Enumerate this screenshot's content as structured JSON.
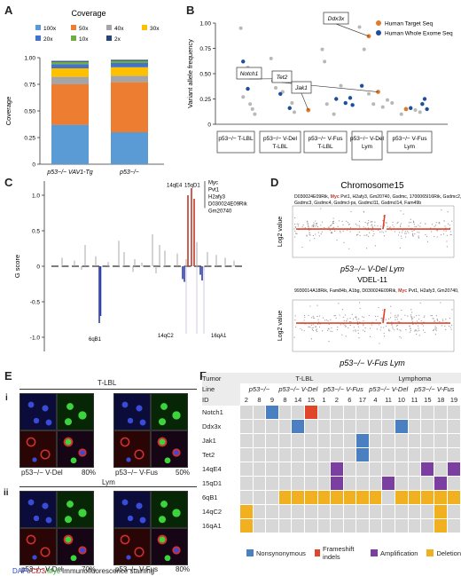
{
  "panels": {
    "A": "A",
    "B": "B",
    "C": "C",
    "D": "D",
    "E": "E",
    "F": "F"
  },
  "panelA": {
    "chart_data": {
      "type": "bar",
      "title": "Coverage",
      "ylabel": "Coverage",
      "ylim": [
        0,
        1
      ],
      "yticks": [
        "0",
        "0.25",
        "0.50",
        "0.75",
        "1.00"
      ],
      "categories": [
        "p53−/− VAV1-Tg",
        "p53−/−"
      ],
      "legend": [
        "100x",
        "50x",
        "40x",
        "30x",
        "20x",
        "10x",
        "2x"
      ],
      "colors": [
        "#5b9bd5",
        "#ed7d31",
        "#a5a5a5",
        "#ffc000",
        "#4472c4",
        "#70ad47",
        "#264478"
      ],
      "stacks": [
        {
          "values": [
            0.37,
            0.38,
            0.07,
            0.08,
            0.04,
            0.02,
            0.01
          ]
        },
        {
          "values": [
            0.3,
            0.47,
            0.06,
            0.08,
            0.04,
            0.02,
            0.01
          ]
        }
      ]
    }
  },
  "panelB": {
    "chart_data": {
      "type": "scatter",
      "ylabel": "Variant allele frequency",
      "ylim": [
        0,
        1
      ],
      "yticks": [
        "0",
        "0.25",
        "0.50",
        "0.75",
        "1.00"
      ],
      "legend": [
        {
          "name": "Human Target Seq",
          "color": "#e07b29"
        },
        {
          "name": "Human Whole Exome Seq",
          "color": "#1f4e9a"
        }
      ],
      "groups": [
        "p53−/− T-LBL",
        "p53−/− V-Del T-LBL",
        "p53−/− V-Fus T-LBL",
        "p53−/− V-Del Lym",
        "p53−/− V-Fus Lym"
      ],
      "callouts": [
        "Ddx3x",
        "Notch1",
        "Tet2",
        "Jak1"
      ],
      "orange_points": [
        [
          3.2,
          0.87
        ],
        [
          1.4,
          0.45
        ],
        [
          3.4,
          0.32
        ],
        [
          1.9,
          0.14
        ],
        [
          4.0,
          0.15
        ]
      ],
      "blue_points": [
        [
          0.5,
          0.62
        ],
        [
          0.55,
          0.47
        ],
        [
          0.6,
          0.35
        ],
        [
          1.15,
          0.43
        ],
        [
          1.3,
          0.3
        ],
        [
          1.5,
          0.16
        ],
        [
          2.5,
          0.25
        ],
        [
          2.7,
          0.21
        ],
        [
          2.8,
          0.26
        ],
        [
          2.85,
          0.19
        ],
        [
          3.05,
          0.38
        ],
        [
          4.1,
          0.16
        ],
        [
          4.35,
          0.2
        ],
        [
          4.4,
          0.25
        ],
        [
          4.45,
          0.15
        ]
      ],
      "gray_points": [
        [
          0.45,
          0.95
        ],
        [
          0.6,
          0.56
        ],
        [
          0.5,
          0.27
        ],
        [
          0.65,
          0.2
        ],
        [
          0.7,
          0.15
        ],
        [
          0.75,
          0.1
        ],
        [
          1.1,
          0.65
        ],
        [
          1.2,
          0.36
        ],
        [
          1.35,
          0.32
        ],
        [
          1.55,
          0.21
        ],
        [
          1.6,
          0.12
        ],
        [
          2.2,
          0.74
        ],
        [
          2.25,
          0.62
        ],
        [
          2.3,
          0.2
        ],
        [
          2.45,
          0.1
        ],
        [
          2.6,
          0.38
        ],
        [
          3.0,
          0.96
        ],
        [
          3.1,
          0.74
        ],
        [
          3.2,
          0.3
        ],
        [
          3.3,
          0.2
        ],
        [
          3.5,
          0.17
        ],
        [
          3.6,
          0.24
        ],
        [
          3.7,
          0.21
        ],
        [
          3.9,
          0.1
        ],
        [
          4.2,
          0.14
        ],
        [
          4.3,
          0.12
        ]
      ]
    }
  },
  "panelC": {
    "ylabel": "G score",
    "yticks": [
      "1.0",
      "0.5",
      "0",
      "-0.5",
      "-1.0"
    ],
    "peak_labels": [
      "14qE4",
      "15qD1"
    ],
    "gene_list": [
      "Myc",
      "Pvt1",
      "H2afy3",
      "D030024E09Rik",
      "Gm20740"
    ],
    "loss_labels": [
      "6qB1",
      "14qC2",
      "16qA1"
    ]
  },
  "panelD": {
    "title": "Chromosome15",
    "ylabel": "Log2 value",
    "top": {
      "genes": [
        "D030024E09Rik,",
        "Myc",
        "Pvt1, H2afy3, Gm20740, Gsdmc, 1700065I16Rik, Gsdmc2, Gsdmc3, Gsdmc4, Gsdmcl-ps, Gsdmcl11, Gsdmcl14, Fam49b"
      ],
      "caption_main": "p53−/− V-Del Lym",
      "caption_sub": "VDEL-11"
    },
    "bottom": {
      "genes": [
        "9930014A18Rik, Fam84b, A1bg, D030024E09Rik,",
        "Myc",
        "Pvt1, H2afy3, Gm20740"
      ],
      "caption_main": "p53−/− V-Fus Lym",
      "caption_sub": "VS2-15"
    }
  },
  "panelE": {
    "section_i": "i",
    "section_ii": "ii",
    "header_i": "T-LBL",
    "header_ii": "Lym",
    "captions": [
      "p53−/− V-Del",
      "80%",
      "p53−/− V-Fus",
      "50%",
      "p53−/− V-Del",
      "70%",
      "p53−/− V-Fus",
      "80%"
    ],
    "stain_dapi": "DAPI",
    "stain_cd3": "CD3",
    "stain_myc": "Myc",
    "stain_rest": " Immunofluorescence staining"
  },
  "panelF": {
    "tumor_label": "Tumor",
    "line_label": "Line",
    "id_label": "ID",
    "tumors": [
      "T-LBL",
      "Lymphoma"
    ],
    "lines": [
      "p53−/−",
      "p53−/− V-Del",
      "p53−/− V-Fus",
      "p53−/− V-Del",
      "p53−/− V-Fus"
    ],
    "ids": [
      "2",
      "8",
      "9",
      "8",
      "14",
      "15",
      "1",
      "2",
      "6",
      "17",
      "4",
      "11",
      "10",
      "11",
      "15",
      "18",
      "19"
    ],
    "genes": [
      "Notch1",
      "Ddx3x",
      "Jak1",
      "Tet2",
      "14qE4",
      "15qD1",
      "6qB1",
      "14qC2",
      "16qA1"
    ],
    "colors": {
      "N": "#4a7fc1",
      "F": "#e0462a",
      "A": "#7a3fa0",
      "D": "#f0b020",
      "E": "#d7d7d7"
    },
    "grid": [
      "EEBEEFEEEEEEEEEEE",
      "EEEEBEEEEEEEBEEEE",
      "EEEEEEEEEBEEEEEEE",
      "EEEEEEEEEBEEEEEEE",
      "EEEEEEEAEEEEEEAEA",
      "EEEEEEEAEEEAEEEAE",
      "EEEDDDDDDDDEDDDDD",
      "DEEEEEEEEEEEEEEDE",
      "DEEEEEEEEEEEEEEDE"
    ],
    "legend": [
      "Nonsynonymous",
      "Frameshift indels",
      "Amplification",
      "Deletion"
    ]
  }
}
